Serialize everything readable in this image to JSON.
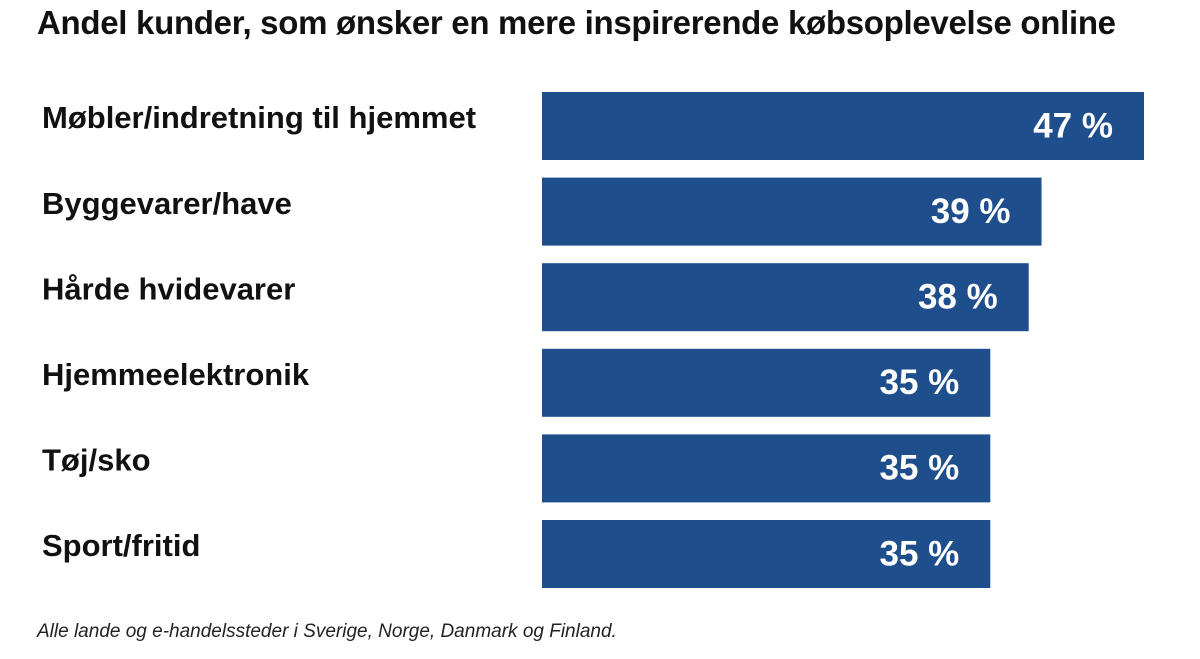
{
  "chart_data": {
    "type": "bar",
    "orientation": "horizontal",
    "title": "Andel kunder, som ønsker en mere inspirerende købsoplevelse online",
    "categories": [
      "Møbler/indretning til hjemmet",
      "Byggevarer/have",
      "Hårde hvidevarer",
      "Hjemmeelektronik",
      "Tøj/sko",
      "Sport/fritid"
    ],
    "values": [
      47,
      39,
      38,
      35,
      35,
      35
    ],
    "value_labels": [
      "47 %",
      "39 %",
      "38 %",
      "35 %",
      "35 %",
      "35 %"
    ],
    "unit": "%",
    "xlim": [
      0,
      47
    ],
    "grid": false,
    "bar_color": "#1f4e8c",
    "footnote": "Alle lande og e-handelssteder i Sverige, Norge, Danmark og Finland."
  }
}
